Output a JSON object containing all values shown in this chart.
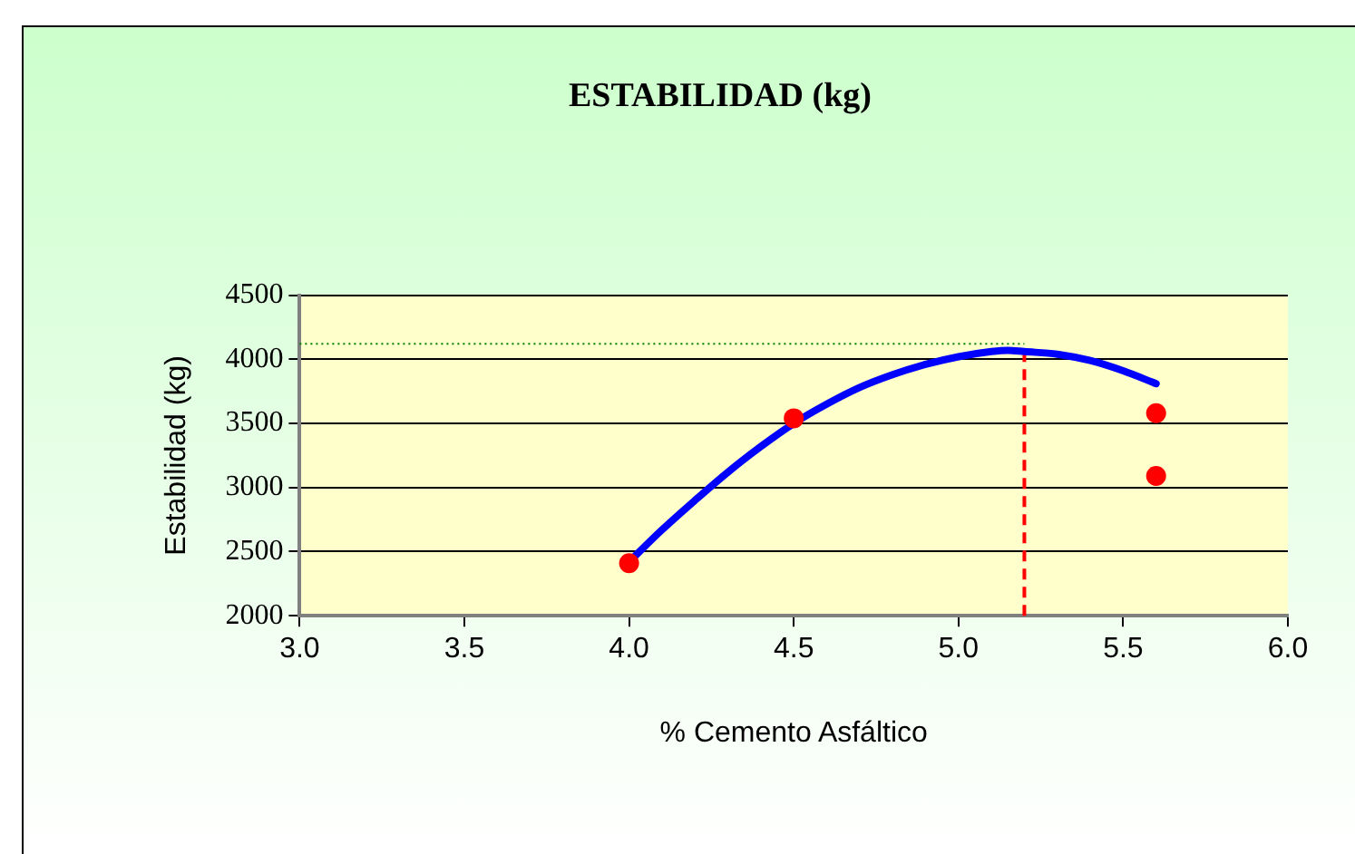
{
  "chart_data": {
    "type": "scatter",
    "title": "ESTABILIDAD (kg)",
    "xlabel": "% Cemento Asfáltico",
    "ylabel": "Estabilidad (kg)",
    "series": [
      {
        "type": "line",
        "color": "#0000ff",
        "marker": "none",
        "x": [
          4.0,
          4.1,
          4.2,
          4.3,
          4.4,
          4.5,
          4.6,
          4.7,
          4.8,
          4.9,
          5.0,
          5.1,
          5.15,
          5.2,
          5.3,
          5.4,
          5.5,
          5.6
        ],
        "values": [
          2420,
          2670,
          2900,
          3120,
          3320,
          3500,
          3650,
          3780,
          3880,
          3960,
          4020,
          4060,
          4070,
          4060,
          4040,
          3990,
          3910,
          3810
        ]
      },
      {
        "color": "#ff0000",
        "marker": "circle",
        "x": [
          4.0,
          4.5,
          5.6,
          5.6
        ],
        "values": [
          2410,
          3540,
          3580,
          3090
        ]
      }
    ],
    "xlim": [
      3,
      6
    ],
    "xticks": [
      {
        "value": 3,
        "label": "3.0"
      },
      {
        "value": 3.5,
        "label": "3.5"
      },
      {
        "value": 4,
        "label": "4.0"
      },
      {
        "value": 4.5,
        "label": "4.5"
      },
      {
        "value": 5,
        "label": "5.0"
      },
      {
        "value": 5.5,
        "label": "5.5"
      },
      {
        "value": 6,
        "label": "6.0"
      }
    ],
    "ylim": [
      2000,
      4500
    ],
    "yticks": [
      2000,
      2500,
      3000,
      3500,
      4000,
      4500
    ],
    "ref_lines": [
      {
        "axis": "x",
        "value": 5.2,
        "color": "#ff0000",
        "line_style": "dashed"
      },
      {
        "axis": "y",
        "value": 4120,
        "color": "#008000",
        "line_style": "dotted"
      }
    ],
    "grid": "y",
    "legend": false
  }
}
